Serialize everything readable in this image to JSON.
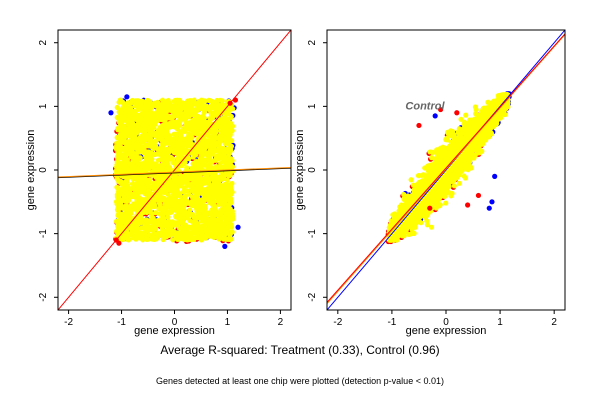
{
  "figure": {
    "caption": "Average R-squared: Treatment (0.33), Control (0.96)",
    "footnote": "Genes detected at least one chip were plotted (detection p-value < 0.01)"
  },
  "colors": {
    "yellow": "#ffff00",
    "red": "#ff0000",
    "blue": "#0000ff",
    "orange": "#ff8c00",
    "dark": "#000000",
    "annotation": "#666666"
  },
  "chart_data": [
    {
      "type": "scatter",
      "panel": "left",
      "title": "",
      "xlabel": "gene expression",
      "ylabel": "gene expression",
      "xlim": [
        -2.2,
        2.2
      ],
      "ylim": [
        -2.2,
        2.2
      ],
      "xticks": [
        "-2",
        "-1",
        "0",
        "1",
        "2"
      ],
      "yticks": [
        "-2",
        "-1",
        "0",
        "1",
        "2"
      ],
      "grid": false,
      "annotation": "",
      "cloud": {
        "shape": "square",
        "x_range": [
          -1.1,
          1.1
        ],
        "y_range": [
          -1.1,
          1.1
        ],
        "color": "yellow"
      },
      "edge_points": {
        "red": [
          [
            1.05,
            1.05
          ],
          [
            -1.1,
            -1.1
          ],
          [
            1.15,
            1.1
          ],
          [
            -1.05,
            -1.15
          ]
        ],
        "blue": [
          [
            -1.2,
            0.9
          ],
          [
            1.2,
            -0.9
          ],
          [
            -0.9,
            1.15
          ],
          [
            0.95,
            -1.2
          ]
        ]
      },
      "lines": [
        {
          "color": "red",
          "x": [
            -2.2,
            2.2
          ],
          "y": [
            -2.2,
            2.2
          ]
        },
        {
          "color": "dark",
          "x": [
            -2.2,
            2.2
          ],
          "y": [
            -0.12,
            0.03
          ]
        },
        {
          "color": "orange",
          "x": [
            -2.2,
            2.2
          ],
          "y": [
            -0.11,
            0.04
          ]
        }
      ]
    },
    {
      "type": "scatter",
      "panel": "right",
      "title": "",
      "xlabel": "gene expression",
      "ylabel": "gene expression",
      "xlim": [
        -2.2,
        2.2
      ],
      "ylim": [
        -2.2,
        2.2
      ],
      "xticks": [
        "-2",
        "-1",
        "0",
        "1",
        "2"
      ],
      "yticks": [
        "-2",
        "-1",
        "0",
        "1",
        "2"
      ],
      "grid": false,
      "annotation": "Control",
      "cloud": {
        "shape": "diagonal",
        "x_range": [
          -1.1,
          1.1
        ],
        "y_range": [
          -1.1,
          1.1
        ],
        "color": "yellow"
      },
      "edge_points": {
        "red": [
          [
            -0.5,
            0.7
          ],
          [
            0.2,
            0.9
          ],
          [
            -0.3,
            -0.6
          ],
          [
            0.6,
            -0.4
          ],
          [
            0.4,
            -0.55
          ],
          [
            -0.1,
            0.95
          ]
        ],
        "blue": [
          [
            0.8,
            -0.6
          ],
          [
            0.9,
            -0.1
          ],
          [
            0.85,
            -0.5
          ],
          [
            -0.2,
            0.85
          ]
        ]
      },
      "lines": [
        {
          "color": "blue",
          "x": [
            -2.2,
            2.2
          ],
          "y": [
            -2.2,
            2.2
          ]
        },
        {
          "color": "orange",
          "x": [
            -2.2,
            2.2
          ],
          "y": [
            -2.1,
            2.13
          ]
        },
        {
          "color": "red",
          "x": [
            -2.2,
            2.2
          ],
          "y": [
            -2.08,
            2.14
          ]
        }
      ]
    }
  ]
}
